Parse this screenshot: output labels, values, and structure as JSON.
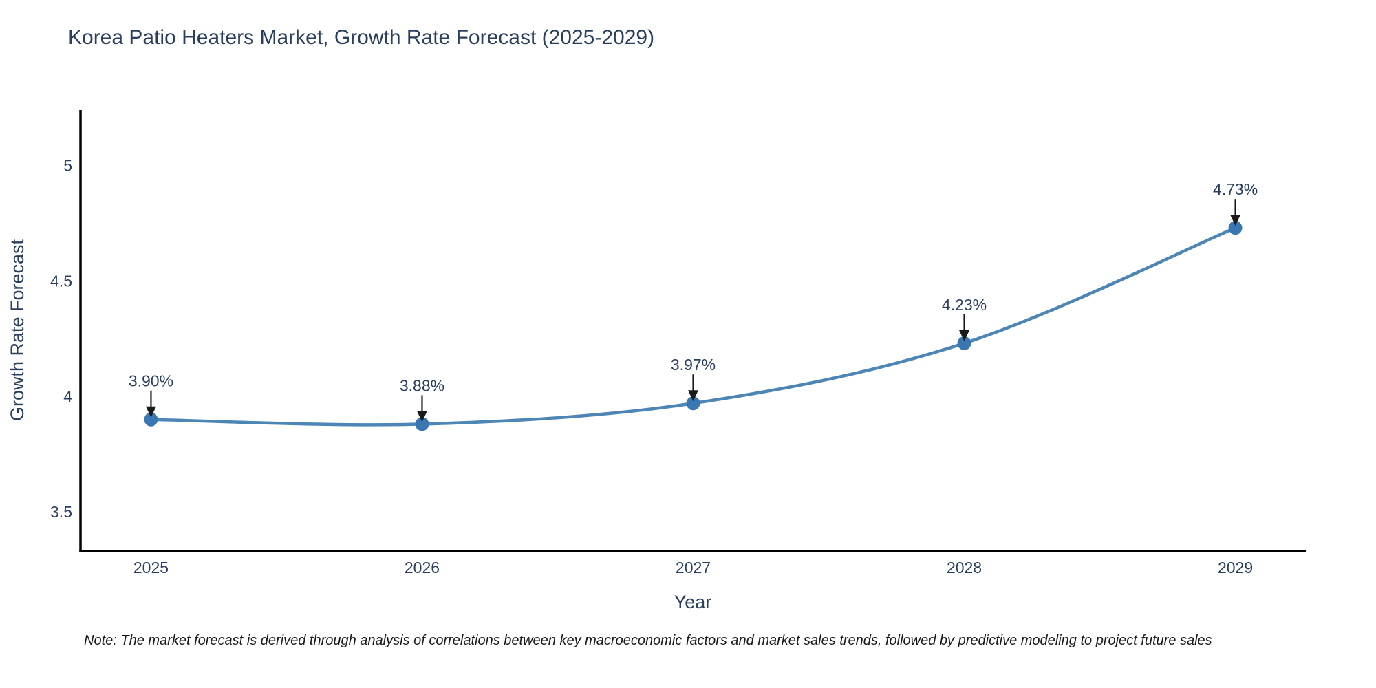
{
  "title": "Korea Patio Heaters Market, Growth Rate Forecast (2025-2029)",
  "note": "Note: The market forecast is derived through analysis of correlations between key macroeconomic factors and market sales trends, followed by predictive modeling to project future sales",
  "chart_data": {
    "type": "line",
    "title": "Korea Patio Heaters Market, Growth Rate Forecast (2025-2029)",
    "xlabel": "Year",
    "ylabel": "Growth Rate Forecast",
    "x": [
      2025,
      2026,
      2027,
      2028,
      2029
    ],
    "values": [
      3.9,
      3.88,
      3.97,
      4.23,
      4.73
    ],
    "point_labels": [
      "3.90%",
      "3.88%",
      "3.97%",
      "4.23%",
      "4.73%"
    ],
    "xticks": [
      2025,
      2026,
      2027,
      2028,
      2029
    ],
    "xtick_labels": [
      "2025",
      "2026",
      "2027",
      "2028",
      "2029"
    ],
    "yticks": [
      3.5,
      4,
      4.5,
      5
    ],
    "ytick_labels": [
      "3.5",
      "4",
      "4.5",
      "5"
    ],
    "xlim": [
      2024.74,
      2029.26
    ],
    "ylim": [
      3.33,
      5.24
    ],
    "grid": false,
    "legend": "none",
    "line_shape": "spline",
    "colors": {
      "line": "#4d86b5",
      "marker": "#3a76b1",
      "axis_line": "#000000",
      "text": "#2a3f5f",
      "annotation_text": "#2a3f5f",
      "arrow": "#1a1a1a",
      "note_text": "#1a1a1a",
      "background": "#ffffff"
    }
  }
}
